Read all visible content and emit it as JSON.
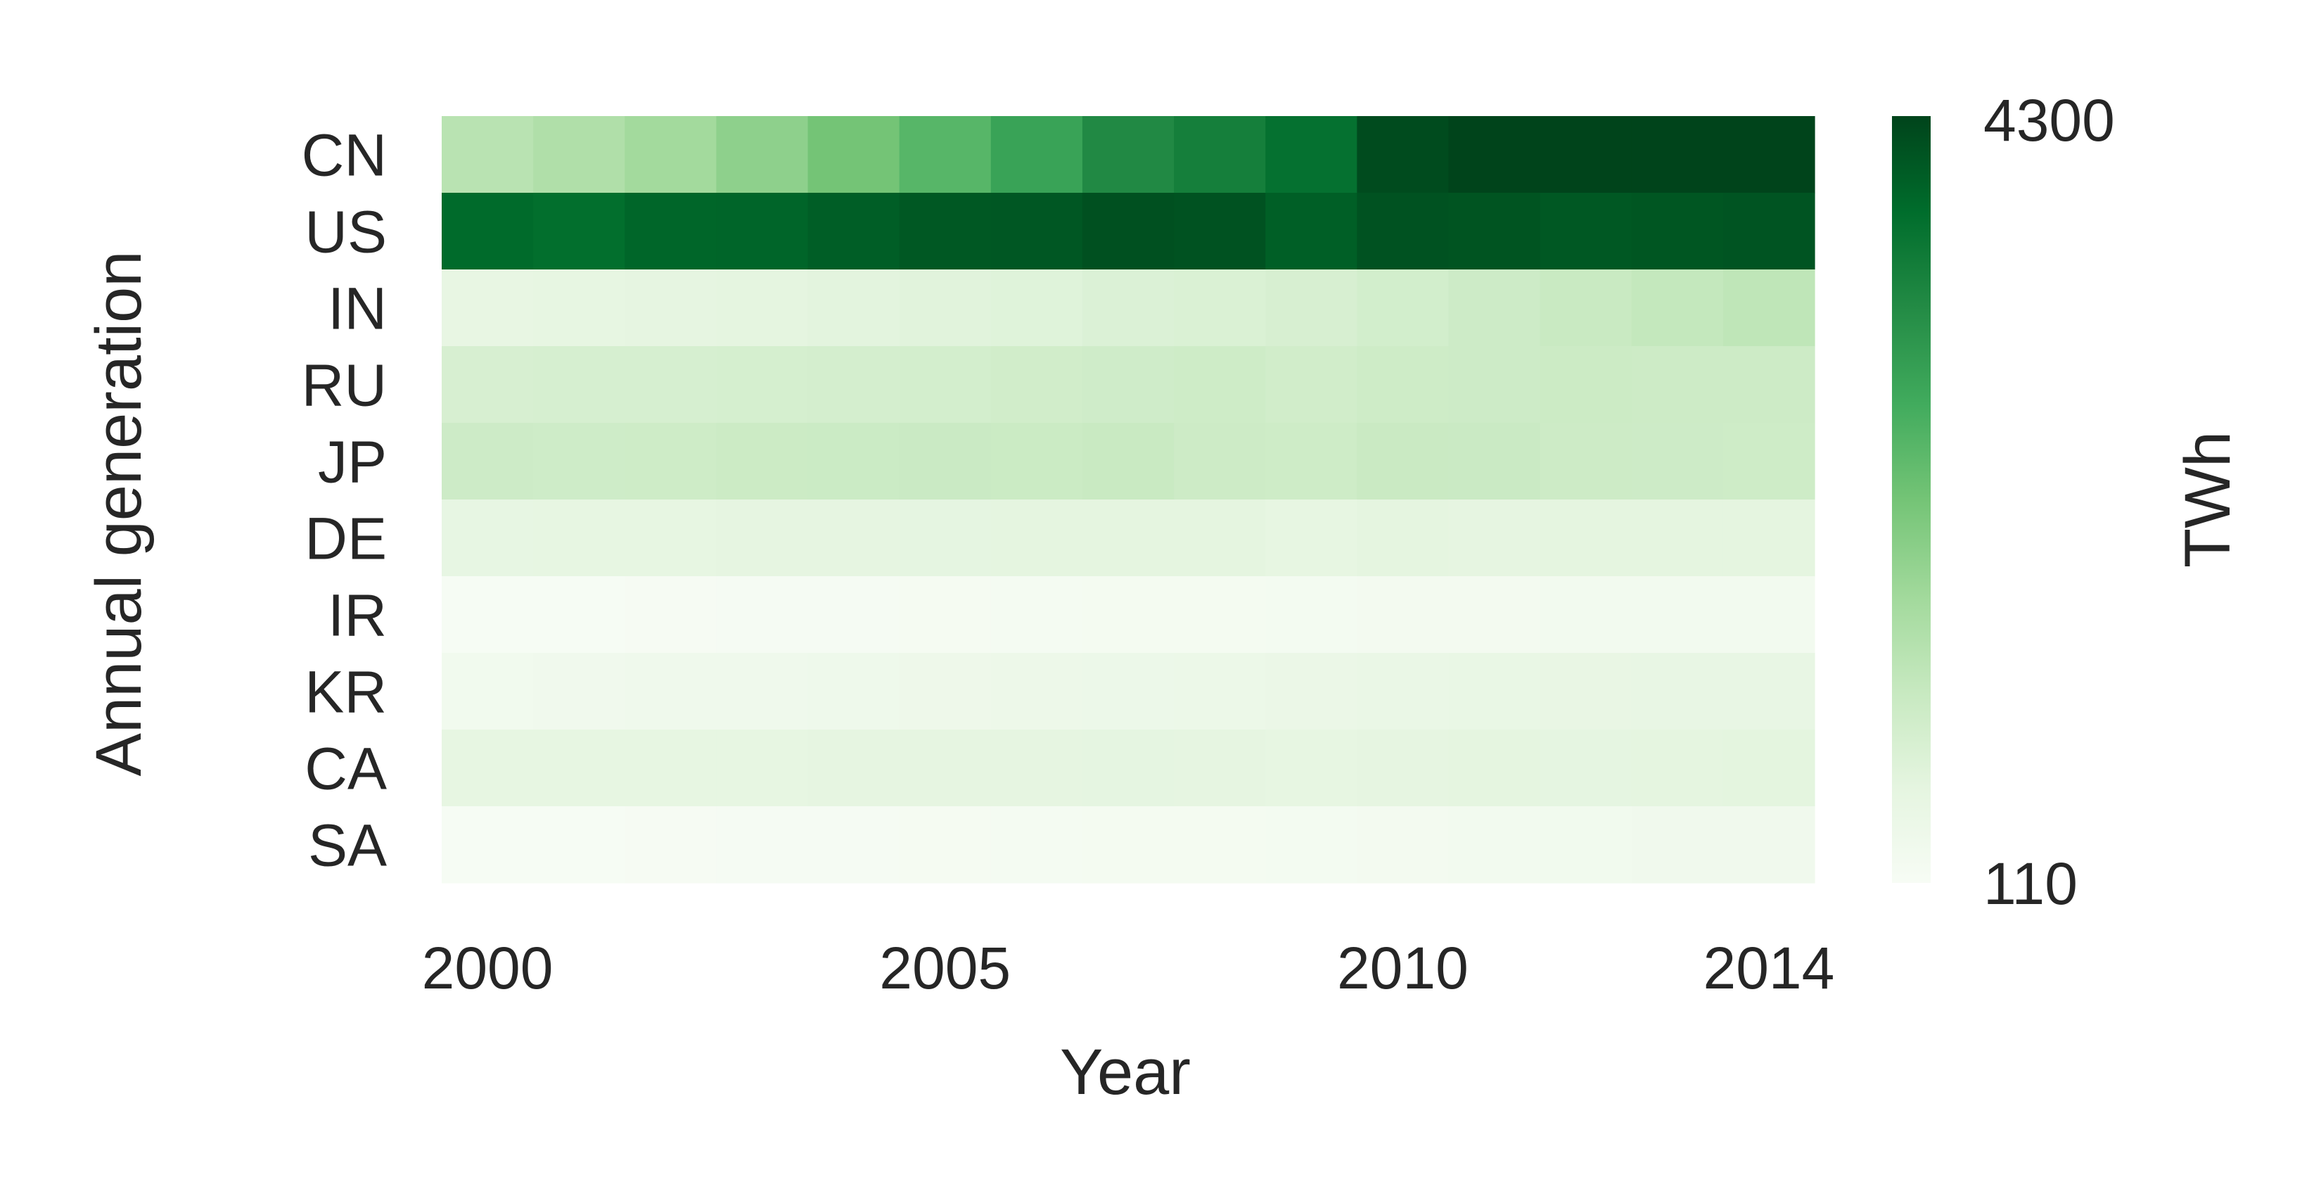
{
  "chart_data": {
    "type": "heatmap",
    "title": "",
    "xlabel": "Year",
    "ylabel": "Annual generation",
    "x": [
      2000,
      2001,
      2002,
      2003,
      2004,
      2005,
      2006,
      2007,
      2008,
      2009,
      2010,
      2011,
      2012,
      2013,
      2014
    ],
    "x_tick_labels": [
      "2000",
      "2005",
      "2010",
      "2014"
    ],
    "x_tick_values": [
      2000,
      2005,
      2010,
      2014
    ],
    "rows": [
      "CN",
      "US",
      "IN",
      "RU",
      "JP",
      "DE",
      "IR",
      "KR",
      "CA",
      "SA"
    ],
    "values": [
      [
        1350,
        1480,
        1650,
        1900,
        2200,
        2500,
        2860,
        3280,
        3460,
        3700,
        4210,
        4700,
        4990,
        5400,
        5650
      ],
      [
        3800,
        3750,
        3860,
        3880,
        3970,
        4050,
        4060,
        4150,
        4120,
        3950,
        4120,
        4100,
        4050,
        4070,
        4090
      ],
      [
        560,
        580,
        600,
        630,
        670,
        700,
        740,
        800,
        830,
        880,
        960,
        1050,
        1130,
        1200,
        1270
      ],
      [
        880,
        890,
        890,
        910,
        930,
        950,
        990,
        1010,
        1040,
        990,
        1040,
        1050,
        1070,
        1060,
        1060
      ],
      [
        1050,
        1030,
        1040,
        1070,
        1080,
        1100,
        1090,
        1130,
        1060,
        1040,
        1110,
        1100,
        1060,
        1050,
        1040
      ],
      [
        570,
        580,
        580,
        600,
        610,
        620,
        640,
        640,
        640,
        590,
        630,
        610,
        630,
        640,
        630
      ],
      [
        130,
        140,
        150,
        160,
        170,
        180,
        190,
        200,
        210,
        220,
        230,
        240,
        250,
        260,
        270
      ],
      [
        290,
        310,
        330,
        340,
        360,
        380,
        400,
        420,
        440,
        450,
        490,
        520,
        530,
        540,
        540
      ],
      [
        590,
        580,
        590,
        590,
        600,
        610,
        600,
        620,
        610,
        580,
        600,
        630,
        620,
        640,
        650
      ],
      [
        130,
        140,
        150,
        160,
        170,
        180,
        190,
        200,
        210,
        220,
        240,
        260,
        280,
        300,
        320
      ]
    ],
    "colorbar": {
      "label": "TWh",
      "min": 110,
      "max": 4300,
      "tick_labels": [
        "4300",
        "110"
      ],
      "colormap": "Greens",
      "color_stops": [
        "#f7fcf5",
        "#e5f5e0",
        "#c7e9c0",
        "#a1d99b",
        "#74c476",
        "#41ab5d",
        "#238b45",
        "#006d2c",
        "#00441b"
      ]
    },
    "grid": false
  }
}
